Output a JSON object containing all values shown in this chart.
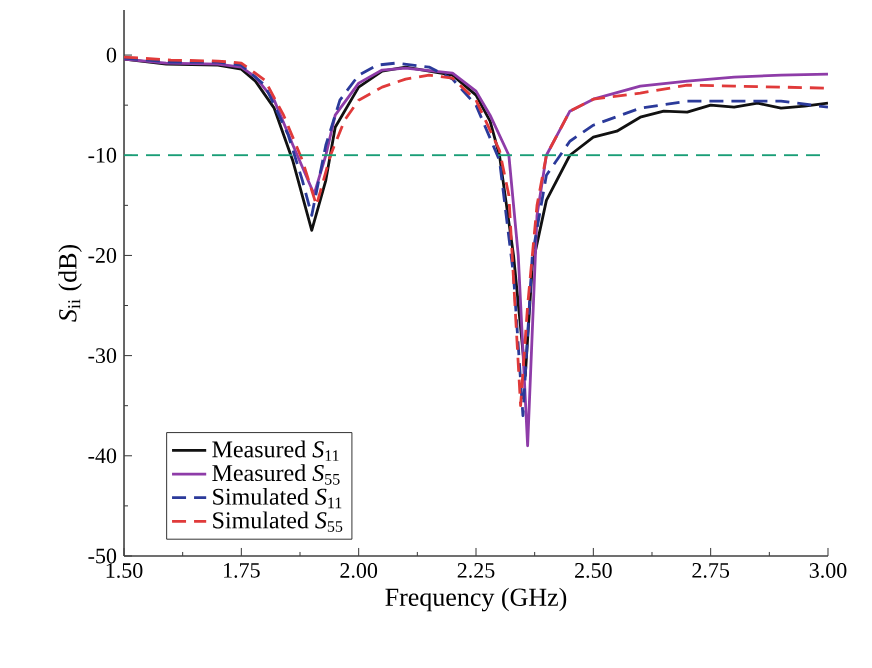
{
  "chart_data": {
    "type": "line",
    "xlabel": "Frequency (GHz)",
    "ylabel": "*S*$_{ii}$ (dB)",
    "xlim": [
      1.5,
      3.0
    ],
    "ylim": [
      -50,
      4.5
    ],
    "xticks": [
      {
        "value": 1.5,
        "label": "1.50"
      },
      {
        "value": 1.75,
        "label": "1.75"
      },
      {
        "value": 2.0,
        "label": "2.00"
      },
      {
        "value": 2.25,
        "label": "2.25"
      },
      {
        "value": 2.5,
        "label": "2.50"
      },
      {
        "value": 2.75,
        "label": "2.75"
      },
      {
        "value": 3.0,
        "label": "3.00"
      }
    ],
    "yticks": [
      -50,
      -40,
      -30,
      -20,
      -10,
      0
    ],
    "legend": "bottom left",
    "grid": false,
    "marker": "none",
    "ref_lines": [
      {
        "axis": "y",
        "value": -10,
        "color": "#1a9e77",
        "line_style": "dashed"
      }
    ],
    "series": [
      {
        "name": "Measured *S*$_{11}$",
        "color": "#111111",
        "line_style": "solid",
        "x": [
          1.5,
          1.59,
          1.7,
          1.75,
          1.78,
          1.82,
          1.86,
          1.9,
          1.93,
          1.95,
          2.0,
          2.05,
          2.1,
          2.2,
          2.25,
          2.28,
          2.3,
          2.33,
          2.355,
          2.37,
          2.4,
          2.45,
          2.5,
          2.55,
          2.6,
          2.65,
          2.7,
          2.75,
          2.8,
          2.85,
          2.9,
          2.95,
          3.0
        ],
        "values": [
          -0.4,
          -0.9,
          -1.0,
          -1.4,
          -2.6,
          -5.3,
          -10.6,
          -17.5,
          -12.5,
          -7.2,
          -3.2,
          -1.6,
          -1.2,
          -2.0,
          -4.0,
          -6.6,
          -10.0,
          -20,
          -32,
          -21,
          -14.5,
          -10.0,
          -8.2,
          -7.6,
          -6.2,
          -5.6,
          -5.7,
          -5.0,
          -5.2,
          -4.8,
          -5.3,
          -5.1,
          -4.8
        ]
      },
      {
        "name": "Measured *S*$_{55}$",
        "color": "#8e3ca8",
        "line_style": "solid",
        "x": [
          1.5,
          1.59,
          1.7,
          1.75,
          1.78,
          1.82,
          1.86,
          1.905,
          1.93,
          1.95,
          2.0,
          2.05,
          2.1,
          2.2,
          2.25,
          2.28,
          2.32,
          2.34,
          2.36,
          2.38,
          2.4,
          2.45,
          2.5,
          2.6,
          2.7,
          2.8,
          2.9,
          3.0
        ],
        "values": [
          -0.4,
          -0.8,
          -0.9,
          -1.2,
          -2.2,
          -4.5,
          -9.0,
          -13.9,
          -10.0,
          -6.0,
          -2.8,
          -1.5,
          -1.3,
          -1.8,
          -3.6,
          -6.0,
          -10.0,
          -20,
          -39,
          -16,
          -10.0,
          -5.6,
          -4.4,
          -3.1,
          -2.6,
          -2.2,
          -2.0,
          -1.9
        ]
      },
      {
        "name": "Simulated *S*$_{11}$",
        "color": "#2b3a9a",
        "line_style": "dashed",
        "x": [
          1.5,
          1.6,
          1.7,
          1.75,
          1.8,
          1.85,
          1.88,
          1.9,
          1.93,
          1.96,
          2.0,
          2.04,
          2.08,
          2.15,
          2.2,
          2.25,
          2.3,
          2.33,
          2.35,
          2.37,
          2.4,
          2.45,
          2.5,
          2.6,
          2.7,
          2.8,
          2.9,
          3.0
        ],
        "values": [
          -0.3,
          -0.7,
          -0.7,
          -1.0,
          -3.0,
          -8.0,
          -12.5,
          -16.0,
          -9.0,
          -4.5,
          -2.0,
          -1.0,
          -0.8,
          -1.2,
          -2.4,
          -5.0,
          -10.5,
          -22,
          -36,
          -20,
          -12.0,
          -8.6,
          -7.0,
          -5.3,
          -4.6,
          -4.6,
          -4.6,
          -5.2
        ]
      },
      {
        "name": "Simulated *S*$_{55}$",
        "color": "#e03a3a",
        "line_style": "dashed",
        "x": [
          1.5,
          1.6,
          1.7,
          1.75,
          1.8,
          1.84,
          1.88,
          1.91,
          1.94,
          1.97,
          2.0,
          2.05,
          2.1,
          2.15,
          2.2,
          2.25,
          2.3,
          2.32,
          2.345,
          2.36,
          2.38,
          2.4,
          2.45,
          2.5,
          2.6,
          2.7,
          2.8,
          2.9,
          3.0
        ],
        "values": [
          -0.2,
          -0.5,
          -0.6,
          -0.8,
          -2.5,
          -6.0,
          -10.5,
          -15.0,
          -10.0,
          -6.5,
          -4.5,
          -3.2,
          -2.4,
          -2.0,
          -2.3,
          -4.5,
          -9.5,
          -14,
          -35,
          -25,
          -15,
          -10.0,
          -5.6,
          -4.4,
          -3.8,
          -3.0,
          -3.1,
          -3.2,
          -3.3
        ]
      }
    ]
  }
}
